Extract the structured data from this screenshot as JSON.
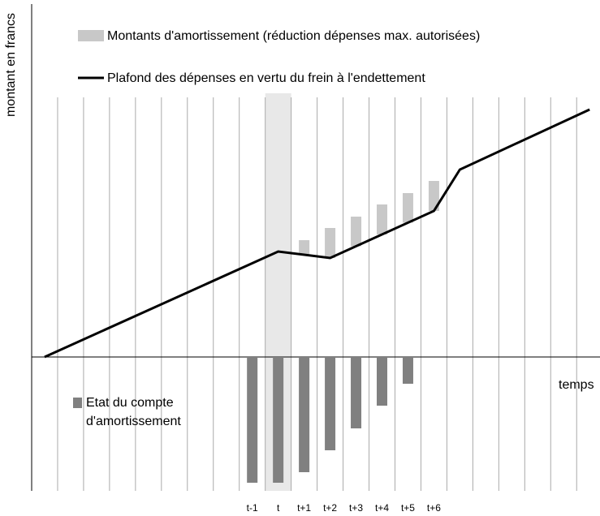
{
  "chart_data": {
    "type": "bar-line",
    "y_label": "montant en francs",
    "x_label": "temps",
    "xlim": [
      -9.5,
      12.4
    ],
    "ylim": [
      -165,
      435
    ],
    "highlight_x": 0,
    "categories": [
      "t-1",
      "t",
      "t+1",
      "t+2",
      "t+3",
      "t+4",
      "t+5",
      "t+6"
    ],
    "category_x": [
      -1,
      0,
      1,
      2,
      3,
      4,
      5,
      6
    ],
    "series": [
      {
        "name": "Montants d'amortissement (réduction dépenses max. autorisées)",
        "color": "#c8c8c8",
        "values": [
          null,
          null,
          144,
          159,
          173,
          188,
          202,
          217
        ]
      },
      {
        "name": "Plafond des dépenses en vertu du frein à l'endettement",
        "color": "#000000",
        "type": "line",
        "x": [
          -9,
          0,
          2,
          6,
          7,
          12
        ],
        "values": [
          0,
          130,
          122,
          180,
          231,
          305
        ]
      },
      {
        "name": "Etat du compte d'amortissement",
        "color": "#808080",
        "values": [
          -155,
          -155,
          -142,
          -115,
          -88,
          -60,
          -33,
          null
        ]
      }
    ]
  }
}
